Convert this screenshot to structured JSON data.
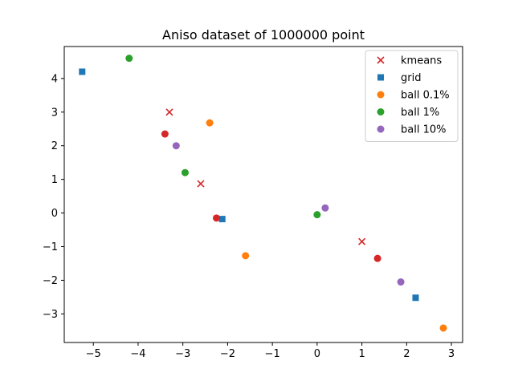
{
  "chart_data": {
    "type": "scatter",
    "title": "Aniso dataset of 1000000 point",
    "xlabel": "",
    "ylabel": "",
    "xlim": [
      -5.65,
      3.25
    ],
    "ylim": [
      -3.85,
      4.95
    ],
    "xticks": [
      -5,
      -4,
      -3,
      -2,
      -1,
      0,
      1,
      2,
      3
    ],
    "yticks": [
      -3,
      -2,
      -1,
      0,
      1,
      2,
      3,
      4
    ],
    "grid": false,
    "legend_position": "top-right",
    "series": [
      {
        "name": "kmeans",
        "marker": "x",
        "color": "#d62728",
        "points": [
          [
            -3.3,
            3.0
          ],
          [
            -2.6,
            0.87
          ],
          [
            1.0,
            -0.85
          ]
        ]
      },
      {
        "name": "grid",
        "marker": "square",
        "color": "#1f77b4",
        "points": [
          [
            -5.25,
            4.2
          ],
          [
            -2.12,
            -0.18
          ],
          [
            2.2,
            -2.52
          ]
        ]
      },
      {
        "name": "ball 0.1%",
        "marker": "circle",
        "color": "#ff7f0e",
        "points": [
          [
            -2.4,
            2.68
          ],
          [
            -1.6,
            -1.27
          ],
          [
            2.82,
            -3.42
          ]
        ]
      },
      {
        "name": "ball 1%",
        "marker": "circle",
        "color": "#2ca02c",
        "points": [
          [
            -4.2,
            4.6
          ],
          [
            -2.95,
            1.2
          ],
          [
            0.0,
            -0.05
          ]
        ]
      },
      {
        "name": "ball 10%",
        "marker": "circle",
        "color": "#9467bd",
        "points": [
          [
            -3.15,
            2.0
          ],
          [
            0.18,
            0.15
          ],
          [
            1.87,
            -2.05
          ]
        ]
      },
      {
        "name": "",
        "marker": "circle",
        "color": "#d62728",
        "points": [
          [
            -3.4,
            2.35
          ],
          [
            -2.25,
            -0.15
          ],
          [
            1.35,
            -1.35
          ]
        ]
      }
    ]
  }
}
